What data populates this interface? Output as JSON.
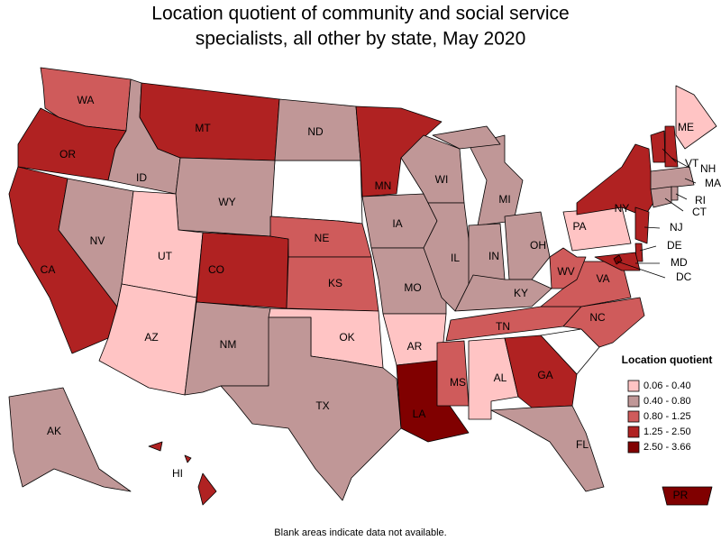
{
  "chart_data": {
    "type": "choropleth",
    "title": [
      "Location quotient of community and social service",
      "specialists, all other by state, May 2020"
    ],
    "legend_title": "Location quotient",
    "legend": [
      {
        "label": "0.06 - 0.40",
        "color": "#ffc4c4"
      },
      {
        "label": "0.40 - 0.80",
        "color": "#c09797"
      },
      {
        "label": "0.80 - 1.25",
        "color": "#cf5b5b"
      },
      {
        "label": "1.25 - 2.50",
        "color": "#b02222"
      },
      {
        "label": "2.50 - 3.66",
        "color": "#800000"
      }
    ],
    "states": [
      {
        "label": "WA",
        "color": "#cf5b5b"
      },
      {
        "label": "OR",
        "color": "#b02222"
      },
      {
        "label": "CA",
        "color": "#b02222"
      },
      {
        "label": "NV",
        "color": "#c09797"
      },
      {
        "label": "ID",
        "color": "#c09797"
      },
      {
        "label": "MT",
        "color": "#b02222"
      },
      {
        "label": "WY",
        "color": "#c09797"
      },
      {
        "label": "UT",
        "color": "#ffc4c4"
      },
      {
        "label": "AZ",
        "color": "#ffc4c4"
      },
      {
        "label": "CO",
        "color": "#b02222"
      },
      {
        "label": "NM",
        "color": "#c09797"
      },
      {
        "label": "ND",
        "color": "#c09797"
      },
      {
        "label": "NE",
        "color": "#cf5b5b"
      },
      {
        "label": "KS",
        "color": "#cf5b5b"
      },
      {
        "label": "OK",
        "color": "#ffc4c4"
      },
      {
        "label": "TX",
        "color": "#c09797"
      },
      {
        "label": "MN",
        "color": "#b02222"
      },
      {
        "label": "IA",
        "color": "#c09797"
      },
      {
        "label": "MO",
        "color": "#c09797"
      },
      {
        "label": "AR",
        "color": "#ffc4c4"
      },
      {
        "label": "LA",
        "color": "#800000"
      },
      {
        "label": "WI",
        "color": "#c09797"
      },
      {
        "label": "IL",
        "color": "#c09797"
      },
      {
        "label": "MI",
        "color": "#c09797"
      },
      {
        "label": "IN",
        "color": "#c09797"
      },
      {
        "label": "OH",
        "color": "#c09797"
      },
      {
        "label": "KY",
        "color": "#c09797"
      },
      {
        "label": "TN",
        "color": "#cf5b5b"
      },
      {
        "label": "MS",
        "color": "#cf5b5b"
      },
      {
        "label": "AL",
        "color": "#ffc4c4"
      },
      {
        "label": "GA",
        "color": "#b02222"
      },
      {
        "label": "FL",
        "color": "#c09797"
      },
      {
        "label": "NC",
        "color": "#cf5b5b"
      },
      {
        "label": "VA",
        "color": "#cf5b5b"
      },
      {
        "label": "WV",
        "color": "#cf5b5b"
      },
      {
        "label": "PA",
        "color": "#ffc4c4"
      },
      {
        "label": "NY",
        "color": "#b02222"
      },
      {
        "label": "VT",
        "color": "#b02222"
      },
      {
        "label": "NH",
        "color": "#b02222"
      },
      {
        "label": "ME",
        "color": "#ffc4c4"
      },
      {
        "label": "MA",
        "color": "#c09797"
      },
      {
        "label": "CT",
        "color": "#c09797"
      },
      {
        "label": "RI",
        "color": "#c09797"
      },
      {
        "label": "NJ",
        "color": "#b02222"
      },
      {
        "label": "DE",
        "color": "#b02222"
      },
      {
        "label": "MD",
        "color": "#b02222"
      },
      {
        "label": "DC",
        "color": "#800000"
      },
      {
        "label": "AK",
        "color": "#c09797"
      },
      {
        "label": "HI",
        "color": "#b02222"
      },
      {
        "label": "PR",
        "color": "#800000"
      }
    ],
    "footnote": "Blank areas indicate data not available."
  }
}
